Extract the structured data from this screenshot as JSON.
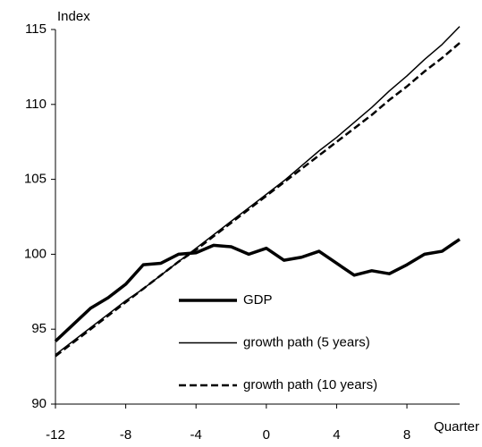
{
  "chart_data": {
    "type": "line",
    "y_label": "Index",
    "x_label": "Quarter",
    "x": [
      -12,
      -11,
      -10,
      -9,
      -8,
      -7,
      -6,
      -5,
      -4,
      -3,
      -2,
      -1,
      0,
      1,
      2,
      3,
      4,
      5,
      6,
      7,
      8,
      9,
      10,
      11
    ],
    "series": [
      {
        "name": "GDP",
        "color": "#000000",
        "style": "thick",
        "values": [
          94.2,
          95.3,
          96.4,
          97.1,
          98.0,
          99.3,
          99.4,
          100.0,
          100.1,
          100.6,
          100.5,
          100.0,
          100.4,
          99.6,
          99.8,
          100.2,
          99.4,
          98.6,
          98.9,
          98.7,
          99.3,
          100.0,
          100.2,
          101.0
        ]
      },
      {
        "name": "growth path (5 years)",
        "color": "#000000",
        "style": "thin",
        "values": [
          93.3,
          94.2,
          95.1,
          96.0,
          96.9,
          97.7,
          98.6,
          99.5,
          100.4,
          101.3,
          102.2,
          103.1,
          104.0,
          104.9,
          105.9,
          106.9,
          107.8,
          108.8,
          109.8,
          110.9,
          111.9,
          113.0,
          114.0,
          115.2
        ]
      },
      {
        "name": "growth path (10 years)",
        "color": "#000000",
        "style": "dashed",
        "values": [
          93.2,
          94.1,
          95.0,
          95.9,
          96.8,
          97.7,
          98.6,
          99.5,
          100.3,
          101.2,
          102.1,
          103.0,
          103.9,
          104.8,
          105.7,
          106.6,
          107.5,
          108.4,
          109.3,
          110.3,
          111.2,
          112.2,
          113.1,
          114.1
        ]
      }
    ],
    "xlim": [
      -12,
      11
    ],
    "xticks": [
      -12,
      -8,
      -4,
      0,
      4,
      8
    ],
    "ylim": [
      90,
      115
    ],
    "yticks": [
      90,
      95,
      100,
      105,
      110,
      115
    ],
    "grid": false
  }
}
